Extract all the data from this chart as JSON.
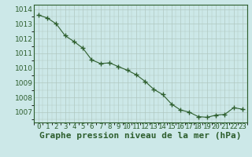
{
  "x": [
    0,
    1,
    2,
    3,
    4,
    5,
    6,
    7,
    8,
    9,
    10,
    11,
    12,
    13,
    14,
    15,
    16,
    17,
    18,
    19,
    20,
    21,
    22,
    23
  ],
  "y": [
    1013.6,
    1013.4,
    1013.0,
    1012.2,
    1011.8,
    1011.35,
    1010.55,
    1010.3,
    1010.35,
    1010.1,
    1009.85,
    1009.55,
    1009.1,
    1008.55,
    1008.2,
    1007.55,
    1007.15,
    1007.0,
    1006.7,
    1006.65,
    1006.8,
    1006.85,
    1007.3,
    1007.2
  ],
  "line_color": "#2d5e2d",
  "marker_color": "#2d5e2d",
  "background_color": "#cce8e8",
  "grid_color": "#b0c8c0",
  "xlabel": "Graphe pression niveau de la mer (hPa)",
  "xlabel_fontsize": 8,
  "ylabel_ticks": [
    1007,
    1008,
    1009,
    1010,
    1011,
    1012,
    1013,
    1014
  ],
  "xtick_labels": [
    "0",
    "1",
    "2",
    "3",
    "4",
    "5",
    "6",
    "7",
    "8",
    "9",
    "10",
    "11",
    "12",
    "13",
    "14",
    "15",
    "16",
    "17",
    "18",
    "19",
    "20",
    "21",
    "22",
    "23"
  ],
  "ylim": [
    1006.3,
    1014.3
  ],
  "xlim": [
    -0.5,
    23.5
  ],
  "tick_color": "#2d5e2d",
  "tick_fontsize": 6.5
}
